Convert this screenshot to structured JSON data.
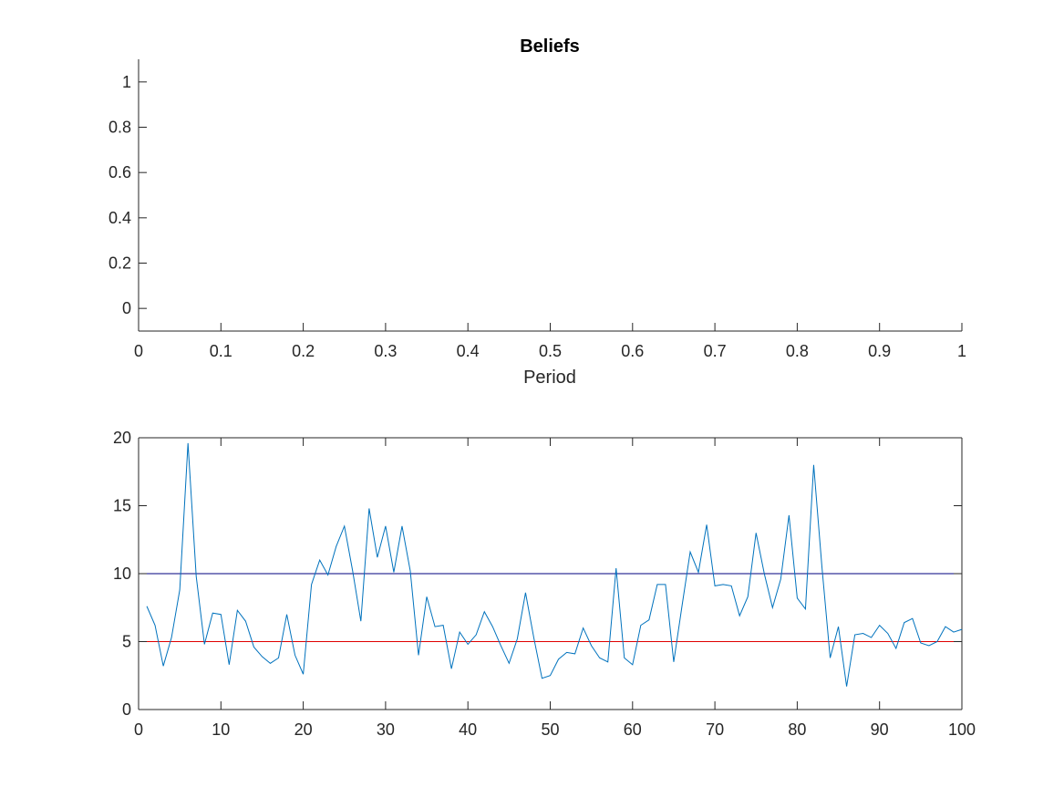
{
  "colors": {
    "axis": "#262626",
    "series": "#0072BD",
    "upper_line": "#00007F",
    "lower_line": "#E00000"
  },
  "chart_data": [
    {
      "type": "line",
      "title": "Beliefs",
      "xlabel": "Period",
      "ylabel": "",
      "xlim": [
        0,
        1
      ],
      "ylim": [
        -0.1,
        1.1
      ],
      "xticks": [
        0,
        0.1,
        0.2,
        0.3,
        0.4,
        0.5,
        0.6,
        0.7,
        0.8,
        0.9,
        1
      ],
      "yticks": [
        0,
        0.2,
        0.4,
        0.6,
        0.8,
        1
      ],
      "xtick_labels": [
        "0",
        "0.1",
        "0.2",
        "0.3",
        "0.4",
        "0.5",
        "0.6",
        "0.7",
        "0.8",
        "0.9",
        "1"
      ],
      "ytick_labels": [
        "0",
        "0.2",
        "0.4",
        "0.6",
        "0.8",
        "1"
      ],
      "box": false,
      "grid": false,
      "series": []
    },
    {
      "type": "line",
      "title": "",
      "xlabel": "",
      "ylabel": "",
      "xlim": [
        0,
        100
      ],
      "ylim": [
        0,
        20
      ],
      "xticks": [
        0,
        10,
        20,
        30,
        40,
        50,
        60,
        70,
        80,
        90,
        100
      ],
      "yticks": [
        0,
        5,
        10,
        15,
        20
      ],
      "xtick_labels": [
        "0",
        "10",
        "20",
        "30",
        "40",
        "50",
        "60",
        "70",
        "80",
        "90",
        "100"
      ],
      "ytick_labels": [
        "0",
        "5",
        "10",
        "15",
        "20"
      ],
      "box": true,
      "grid": false,
      "hlines": [
        {
          "y": 10,
          "color": "#00007F"
        },
        {
          "y": 5,
          "color": "#E00000"
        }
      ],
      "series": [
        {
          "color": "#0072BD",
          "x": [
            1,
            2,
            3,
            4,
            5,
            6,
            7,
            8,
            9,
            10,
            11,
            12,
            13,
            14,
            15,
            16,
            17,
            18,
            19,
            20,
            21,
            22,
            23,
            24,
            25,
            26,
            27,
            28,
            29,
            30,
            31,
            32,
            33,
            34,
            35,
            36,
            37,
            38,
            39,
            40,
            41,
            42,
            43,
            44,
            45,
            46,
            47,
            48,
            49,
            50,
            51,
            52,
            53,
            54,
            55,
            56,
            57,
            58,
            59,
            60,
            61,
            62,
            63,
            64,
            65,
            66,
            67,
            68,
            69,
            70,
            71,
            72,
            73,
            74,
            75,
            76,
            77,
            78,
            79,
            80,
            81,
            82,
            83,
            84,
            85,
            86,
            87,
            88,
            89,
            90,
            91,
            92,
            93,
            94,
            95,
            96,
            97,
            98,
            99,
            100
          ],
          "y": [
            7.6,
            6.2,
            3.2,
            5.3,
            8.8,
            19.6,
            9.8,
            4.8,
            7.1,
            7.0,
            3.3,
            7.3,
            6.5,
            4.6,
            3.9,
            3.4,
            3.8,
            7.0,
            4.0,
            2.6,
            9.2,
            11.0,
            9.9,
            12.0,
            13.5,
            10.2,
            6.5,
            14.8,
            11.2,
            13.5,
            10.1,
            13.5,
            10.2,
            4.0,
            8.3,
            6.1,
            6.2,
            3.0,
            5.7,
            4.8,
            5.5,
            7.2,
            6.1,
            4.7,
            3.4,
            5.2,
            8.6,
            5.3,
            2.3,
            2.5,
            3.7,
            4.2,
            4.1,
            6.0,
            4.7,
            3.8,
            3.5,
            10.4,
            3.8,
            3.3,
            6.2,
            6.6,
            9.2,
            9.2,
            3.5,
            7.6,
            11.6,
            10.1,
            13.6,
            9.1,
            9.2,
            9.1,
            6.9,
            8.3,
            13.0,
            10.0,
            7.5,
            9.6,
            14.3,
            8.2,
            7.4,
            18.0,
            10.5,
            3.8,
            6.1,
            1.7,
            5.5,
            5.6,
            5.3,
            6.2,
            5.6,
            4.5,
            6.4,
            6.7,
            4.9,
            4.7,
            5.0,
            6.1,
            5.7,
            5.9
          ]
        }
      ]
    }
  ]
}
